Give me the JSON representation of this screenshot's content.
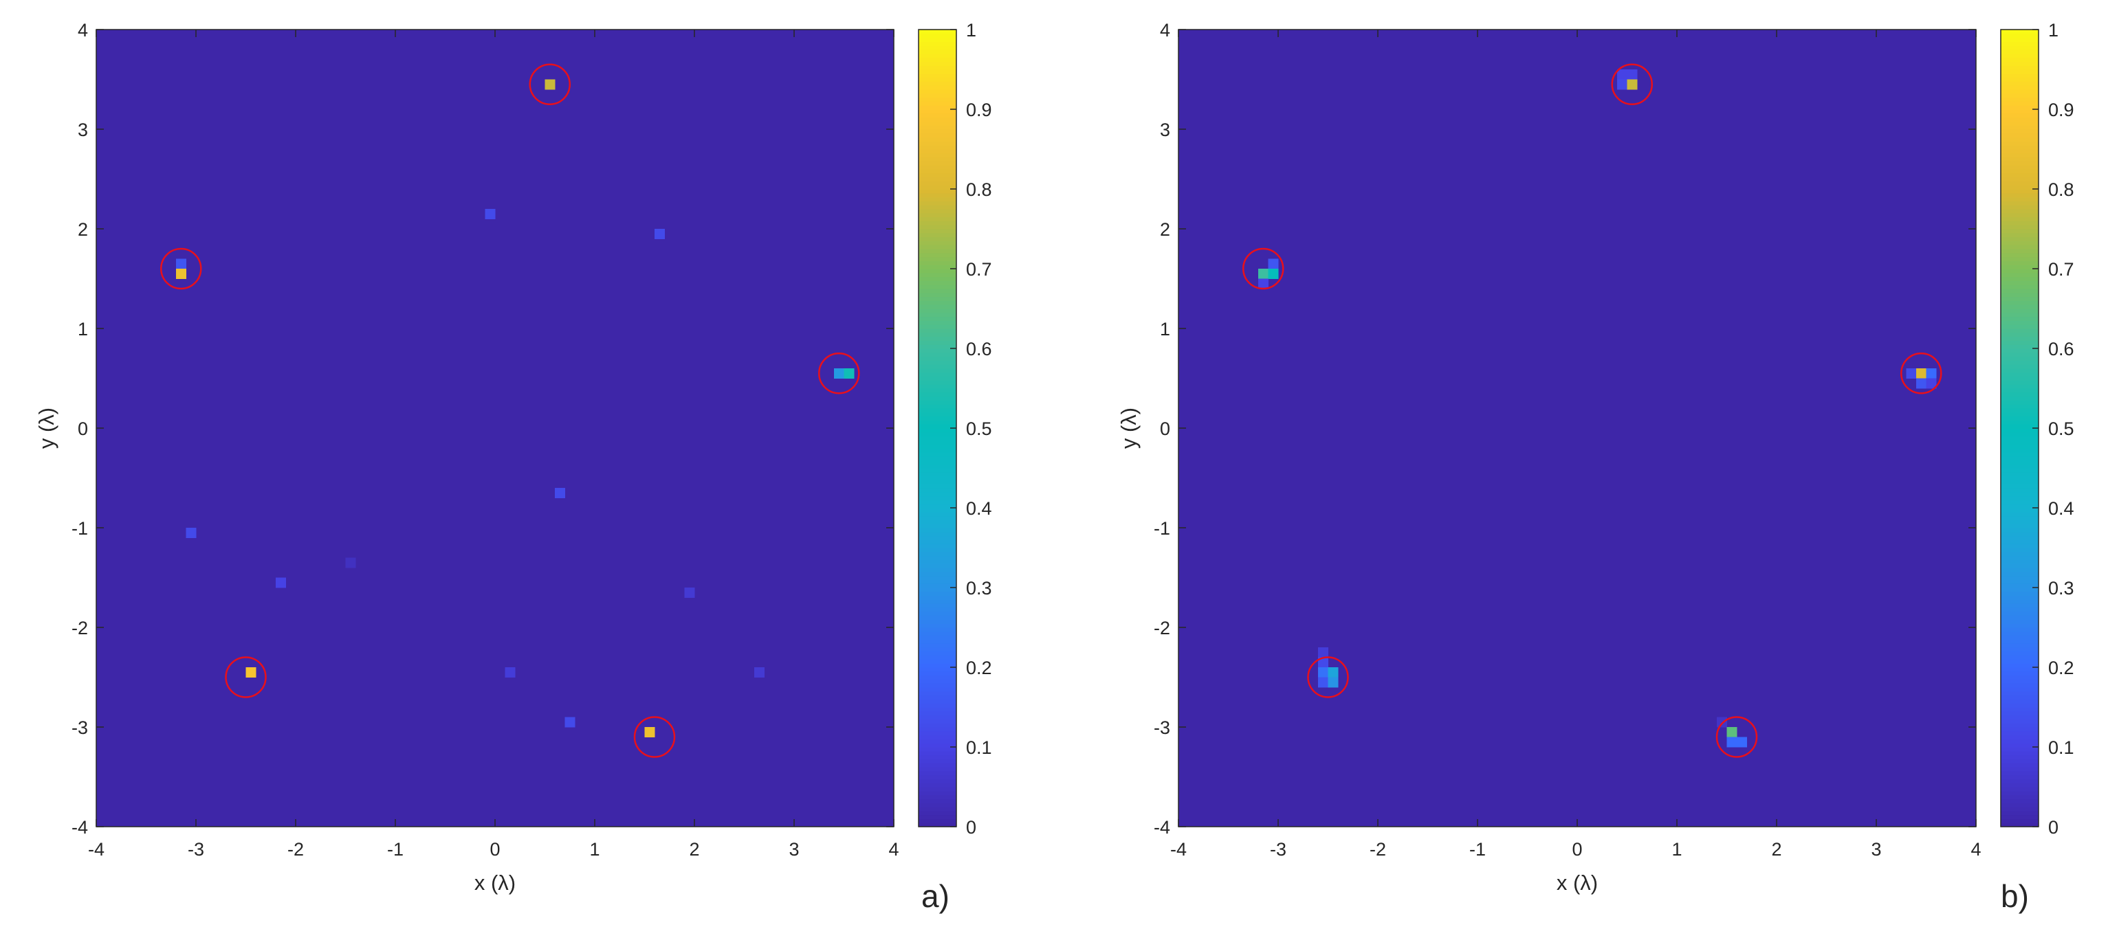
{
  "chart_data": [
    {
      "type": "heatmap",
      "panel_label": "a)",
      "xlabel": "x (λ)",
      "ylabel": "y (λ)",
      "xlim": [
        -4,
        4
      ],
      "ylim": [
        -4,
        4
      ],
      "clim": [
        0,
        1
      ],
      "colormap": "parula",
      "grid": false,
      "background_value": 0.0,
      "cell_size": 0.1,
      "x_ticks": [
        "-4",
        "-3",
        "-2",
        "-1",
        "0",
        "1",
        "2",
        "3",
        "4"
      ],
      "y_ticks": [
        "-4",
        "-3",
        "-2",
        "-1",
        "0",
        "1",
        "2",
        "3",
        "4"
      ],
      "colorbar_ticks": [
        "0",
        "0.1",
        "0.2",
        "0.3",
        "0.4",
        "0.5",
        "0.6",
        "0.7",
        "0.8",
        "0.9",
        "1"
      ],
      "cells": [
        {
          "x": 0.55,
          "y": 3.45,
          "value": 0.78
        },
        {
          "x": -3.15,
          "y": 1.65,
          "value": 0.15
        },
        {
          "x": -3.15,
          "y": 1.55,
          "value": 0.85
        },
        {
          "x": 3.45,
          "y": 0.55,
          "value": 0.32
        },
        {
          "x": 3.55,
          "y": 0.55,
          "value": 0.52
        },
        {
          "x": -2.45,
          "y": -2.45,
          "value": 0.88
        },
        {
          "x": 1.55,
          "y": -3.05,
          "value": 0.85
        },
        {
          "x": -0.05,
          "y": 2.15,
          "value": 0.12
        },
        {
          "x": 1.65,
          "y": 1.95,
          "value": 0.12
        },
        {
          "x": 0.65,
          "y": -0.65,
          "value": 0.12
        },
        {
          "x": -3.05,
          "y": -1.05,
          "value": 0.12
        },
        {
          "x": -2.15,
          "y": -1.55,
          "value": 0.1
        },
        {
          "x": -1.45,
          "y": -1.35,
          "value": 0.04
        },
        {
          "x": 1.95,
          "y": -1.65,
          "value": 0.07
        },
        {
          "x": 0.15,
          "y": -2.45,
          "value": 0.08
        },
        {
          "x": 2.65,
          "y": -2.45,
          "value": 0.07
        },
        {
          "x": 0.75,
          "y": -2.95,
          "value": 0.12
        }
      ],
      "markers": [
        {
          "x": 0.55,
          "y": 3.45
        },
        {
          "x": -3.15,
          "y": 1.6
        },
        {
          "x": 3.45,
          "y": 0.55
        },
        {
          "x": -2.5,
          "y": -2.5
        },
        {
          "x": 1.6,
          "y": -3.1
        }
      ],
      "marker_radius": 0.2,
      "marker_color": "#e8101c"
    },
    {
      "type": "heatmap",
      "panel_label": "b)",
      "xlabel": "x (λ)",
      "ylabel": "y (λ)",
      "xlim": [
        -4,
        4
      ],
      "ylim": [
        -4,
        4
      ],
      "clim": [
        0,
        1
      ],
      "colormap": "parula",
      "grid": false,
      "background_value": 0.0,
      "cell_size": 0.1,
      "x_ticks": [
        "-4",
        "-3",
        "-2",
        "-1",
        "0",
        "1",
        "2",
        "3",
        "4"
      ],
      "y_ticks": [
        "-4",
        "-3",
        "-2",
        "-1",
        "0",
        "1",
        "2",
        "3",
        "4"
      ],
      "colorbar_ticks": [
        "0",
        "0.1",
        "0.2",
        "0.3",
        "0.4",
        "0.5",
        "0.6",
        "0.7",
        "0.8",
        "0.9",
        "1"
      ],
      "cells": [
        {
          "x": 0.45,
          "y": 3.55,
          "value": 0.1
        },
        {
          "x": 0.55,
          "y": 3.55,
          "value": 0.1
        },
        {
          "x": 0.45,
          "y": 3.45,
          "value": 0.12
        },
        {
          "x": 0.55,
          "y": 3.45,
          "value": 0.78
        },
        {
          "x": -3.05,
          "y": 1.65,
          "value": 0.15
        },
        {
          "x": -3.15,
          "y": 1.55,
          "value": 0.6
        },
        {
          "x": -3.05,
          "y": 1.55,
          "value": 0.5
        },
        {
          "x": -3.15,
          "y": 1.45,
          "value": 0.1
        },
        {
          "x": 3.35,
          "y": 0.55,
          "value": 0.12
        },
        {
          "x": 3.45,
          "y": 0.55,
          "value": 0.8
        },
        {
          "x": 3.55,
          "y": 0.55,
          "value": 0.2
        },
        {
          "x": 3.45,
          "y": 0.45,
          "value": 0.15
        },
        {
          "x": 3.55,
          "y": 0.45,
          "value": 0.1
        },
        {
          "x": -2.55,
          "y": -2.25,
          "value": 0.08
        },
        {
          "x": -2.55,
          "y": -2.35,
          "value": 0.12
        },
        {
          "x": -2.55,
          "y": -2.45,
          "value": 0.22
        },
        {
          "x": -2.45,
          "y": -2.45,
          "value": 0.35
        },
        {
          "x": -2.55,
          "y": -2.55,
          "value": 0.15
        },
        {
          "x": -2.45,
          "y": -2.55,
          "value": 0.3
        },
        {
          "x": 1.45,
          "y": -2.95,
          "value": 0.05
        },
        {
          "x": 1.55,
          "y": -3.05,
          "value": 0.65
        },
        {
          "x": 1.55,
          "y": -3.15,
          "value": 0.2
        },
        {
          "x": 1.65,
          "y": -3.15,
          "value": 0.2
        }
      ],
      "markers": [
        {
          "x": 0.55,
          "y": 3.45
        },
        {
          "x": -3.15,
          "y": 1.6
        },
        {
          "x": 3.45,
          "y": 0.55
        },
        {
          "x": -2.5,
          "y": -2.5
        },
        {
          "x": 1.6,
          "y": -3.1
        }
      ],
      "marker_radius": 0.2,
      "marker_color": "#e8101c"
    }
  ]
}
